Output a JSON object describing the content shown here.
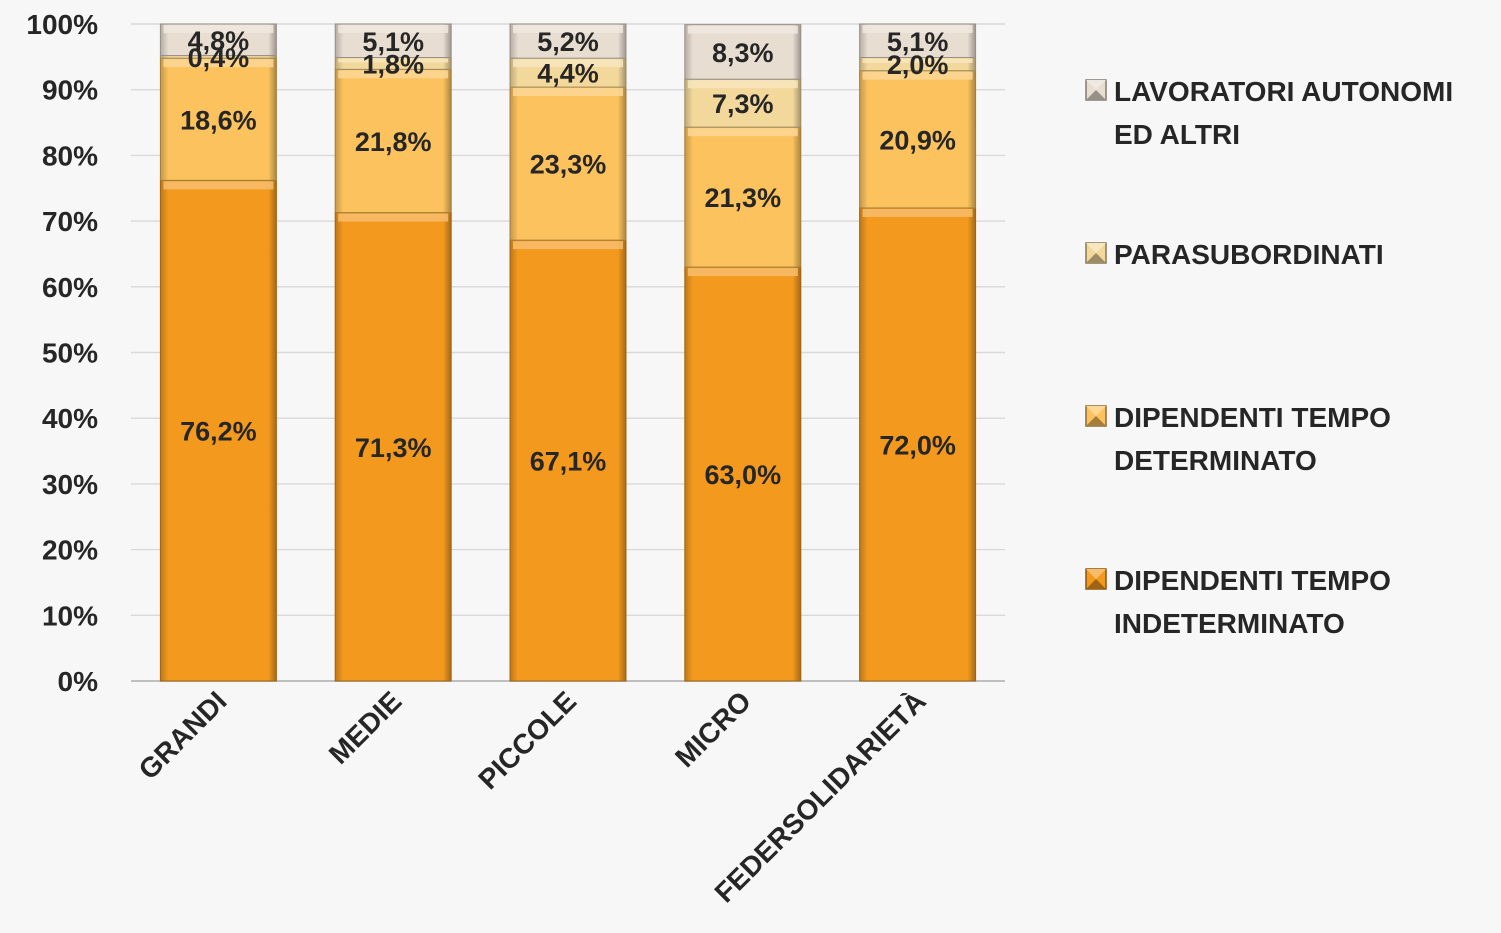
{
  "colors": {
    "background": "#f7f7f7",
    "grid": "#d9d9d9",
    "axis": "#bfbfbf",
    "text": "#262626",
    "series": [
      "#f39a1e",
      "#fbc25d",
      "#f3d89b",
      "#e8ddd1"
    ]
  },
  "chart_data": {
    "type": "bar",
    "stacked": true,
    "percent_axis": true,
    "categories": [
      "GRANDI",
      "MEDIE",
      "PICCOLE",
      "MICRO",
      "FEDERSOLIDARIETÀ"
    ],
    "series": [
      {
        "name": "DIPENDENTI TEMPO INDETERMINATO",
        "legend_lines": [
          "DIPENDENTI TEMPO",
          "INDETERMINATO"
        ],
        "values": [
          76.2,
          71.3,
          67.1,
          63.0,
          72.0
        ],
        "labels": [
          "76,2%",
          "71,3%",
          "67,1%",
          "63,0%",
          "72,0%"
        ]
      },
      {
        "name": "DIPENDENTI TEMPO DETERMINATO",
        "legend_lines": [
          "DIPENDENTI TEMPO",
          "DETERMINATO"
        ],
        "values": [
          18.6,
          21.8,
          23.3,
          21.3,
          20.9
        ],
        "labels": [
          "18,6%",
          "21,8%",
          "23,3%",
          "21,3%",
          "20,9%"
        ]
      },
      {
        "name": "PARASUBORDINATI",
        "legend_lines": [
          "PARASUBORDINATI"
        ],
        "values": [
          0.4,
          1.8,
          4.4,
          7.3,
          2.0
        ],
        "labels": [
          "0,4%",
          "1,8%",
          "4,4%",
          "7,3%",
          "2,0%"
        ]
      },
      {
        "name": "LAVORATORI AUTONOMI ED ALTRI",
        "legend_lines": [
          "LAVORATORI AUTONOMI",
          "ED ALTRI"
        ],
        "values": [
          4.8,
          5.1,
          5.2,
          8.3,
          5.1
        ],
        "labels": [
          "4,8%",
          "5,1%",
          "5,2%",
          "8,3%",
          "5,1%"
        ]
      }
    ],
    "legend_order": [
      3,
      2,
      1,
      0
    ],
    "yticks": [
      "0%",
      "10%",
      "20%",
      "30%",
      "40%",
      "50%",
      "60%",
      "70%",
      "80%",
      "90%",
      "100%"
    ],
    "ylim": [
      0,
      100
    ],
    "grid": true,
    "legend_position": "right",
    "title": "",
    "xlabel": "",
    "ylabel": ""
  }
}
